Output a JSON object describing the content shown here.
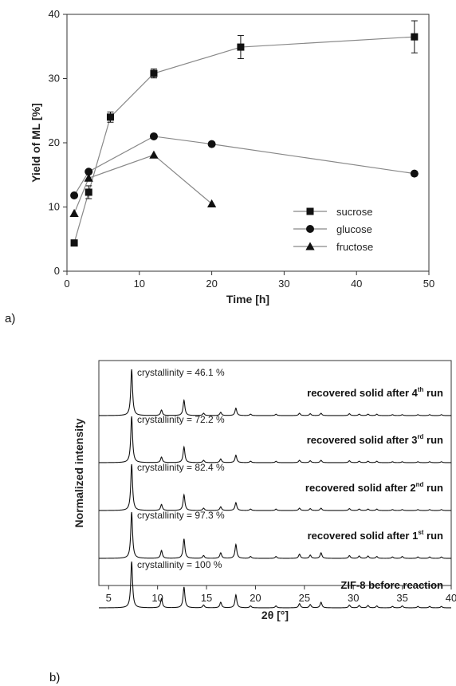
{
  "panel_labels": {
    "a": "a)",
    "b": "b)"
  },
  "chart_data": [
    {
      "type": "line",
      "xlabel": "Time [h]",
      "ylabel": "Yield of ML [%]",
      "xlim": [
        0,
        50
      ],
      "ylim": [
        0,
        40
      ],
      "xticks": [
        0,
        10,
        20,
        30,
        40,
        50
      ],
      "yticks": [
        0,
        10,
        20,
        30,
        40
      ],
      "grid": false,
      "legend_position": "bottom-right",
      "series": [
        {
          "name": "sucrose",
          "marker": "square",
          "x": [
            1,
            3,
            6,
            12,
            24,
            48
          ],
          "y": [
            4.4,
            12.3,
            24.0,
            30.8,
            34.9,
            36.5
          ],
          "yerr": [
            0.3,
            1.0,
            0.8,
            0.7,
            1.8,
            2.5
          ]
        },
        {
          "name": "glucose",
          "marker": "circle",
          "x": [
            1,
            3,
            12,
            20,
            48
          ],
          "y": [
            11.8,
            15.5,
            21.0,
            19.8,
            15.2
          ],
          "yerr": [
            0,
            0,
            0,
            0,
            0
          ]
        },
        {
          "name": "fructose",
          "marker": "triangle",
          "x": [
            1,
            3,
            12,
            20
          ],
          "y": [
            9.0,
            14.5,
            18.1,
            10.5
          ],
          "yerr": [
            0,
            0,
            0,
            0
          ]
        }
      ]
    },
    {
      "type": "line",
      "xlabel": "2θ [°]",
      "ylabel": "Normalized intensity",
      "xlim": [
        4,
        40
      ],
      "xticks": [
        5,
        10,
        15,
        20,
        25,
        30,
        35,
        40
      ],
      "peaks_2theta": [
        7.35,
        10.4,
        12.7,
        14.7,
        16.45,
        18.0,
        19.5,
        22.1,
        24.5,
        25.6,
        26.7,
        29.6,
        30.6,
        31.5,
        32.4,
        34.0,
        35.0,
        36.6,
        37.8,
        39.0
      ],
      "traces": [
        {
          "annotation": "crystallinity = 46.1 %",
          "label_main": "recovered solid after 4",
          "label_sup": "th",
          "label_end": " run",
          "peak_heights": [
            1.0,
            0.12,
            0.33,
            0.05,
            0.07,
            0.16,
            0.03,
            0.03,
            0.05,
            0.04,
            0.05,
            0.04,
            0.03,
            0.03,
            0.03,
            0.02,
            0.02,
            0.02,
            0.02,
            0.02
          ]
        },
        {
          "annotation": "crystallinity = 72.2 %",
          "label_main": "recovered solid after 3",
          "label_sup": "rd",
          "label_end": " run",
          "peak_heights": [
            1.0,
            0.12,
            0.34,
            0.05,
            0.08,
            0.16,
            0.03,
            0.03,
            0.05,
            0.04,
            0.05,
            0.04,
            0.03,
            0.03,
            0.03,
            0.02,
            0.02,
            0.02,
            0.02,
            0.02
          ]
        },
        {
          "annotation": "crystallinity = 82.4 %",
          "label_main": "recovered solid after 2",
          "label_sup": "nd",
          "label_end": " run",
          "peak_heights": [
            1.0,
            0.13,
            0.34,
            0.05,
            0.08,
            0.17,
            0.03,
            0.03,
            0.05,
            0.04,
            0.05,
            0.04,
            0.03,
            0.03,
            0.03,
            0.02,
            0.02,
            0.02,
            0.02,
            0.02
          ]
        },
        {
          "annotation": "crystallinity = 97.3 %",
          "label_main": "recovered solid after 1",
          "label_sup": "st",
          "label_end": " run",
          "peak_heights": [
            1.0,
            0.17,
            0.42,
            0.06,
            0.12,
            0.3,
            0.04,
            0.04,
            0.09,
            0.07,
            0.12,
            0.06,
            0.05,
            0.05,
            0.04,
            0.03,
            0.04,
            0.03,
            0.03,
            0.03
          ]
        },
        {
          "annotation": "crystallinity = 100 %",
          "label_main": "ZIF-8 before reaction",
          "label_sup": "",
          "label_end": "",
          "peak_heights": [
            1.0,
            0.2,
            0.45,
            0.06,
            0.12,
            0.28,
            0.04,
            0.04,
            0.09,
            0.07,
            0.12,
            0.06,
            0.05,
            0.05,
            0.04,
            0.03,
            0.04,
            0.03,
            0.03,
            0.03
          ]
        }
      ]
    }
  ]
}
